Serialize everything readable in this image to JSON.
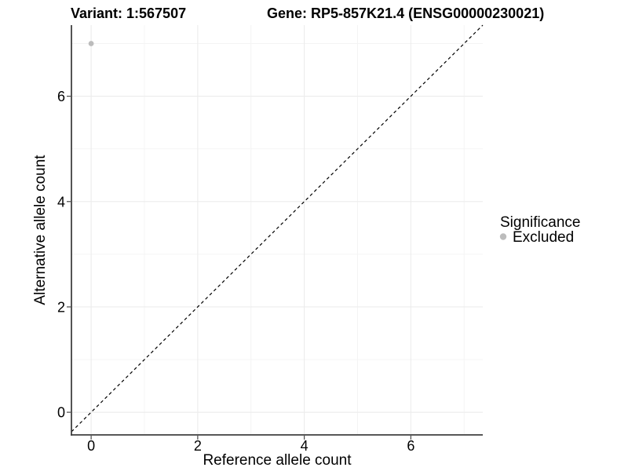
{
  "header": {
    "title_left": "Variant: 1:567507",
    "title_right": "Gene: RP5-857K21.4 (ENSG00000230021)"
  },
  "chart_data": {
    "type": "scatter",
    "title_left": "Variant: 1:567507",
    "title_right": "Gene: RP5-857K21.4 (ENSG00000230021)",
    "xlabel": "Reference allele count",
    "ylabel": "Alternative allele count",
    "xlim": [
      -0.37,
      7.35
    ],
    "ylim": [
      -0.43,
      7.35
    ],
    "x_major_ticks": [
      0,
      2,
      4,
      6
    ],
    "x_minor_gridlines": [
      1,
      3,
      5,
      7
    ],
    "y_major_ticks": [
      0,
      2,
      4,
      6
    ],
    "y_minor_gridlines": [
      1,
      3,
      5,
      7
    ],
    "grid": "on",
    "points": [
      {
        "x": 0,
        "y": 7,
        "significance": "Excluded"
      }
    ],
    "identity_line": {
      "slope": 1,
      "intercept": 0,
      "style": "dashed"
    },
    "legend": {
      "position": "right",
      "title": "Significance",
      "entries": [
        {
          "label": "Excluded",
          "color": "#bcbcbc"
        }
      ]
    },
    "colors": {
      "point": "#bcbcbc",
      "grid_major": "#ececec",
      "grid_minor": "#f4f4f4",
      "axis_line": "#404040",
      "tick_mark": "#4a4a4a",
      "identity_line": "#000000",
      "background": "#ffffff",
      "text": "#000000"
    }
  }
}
